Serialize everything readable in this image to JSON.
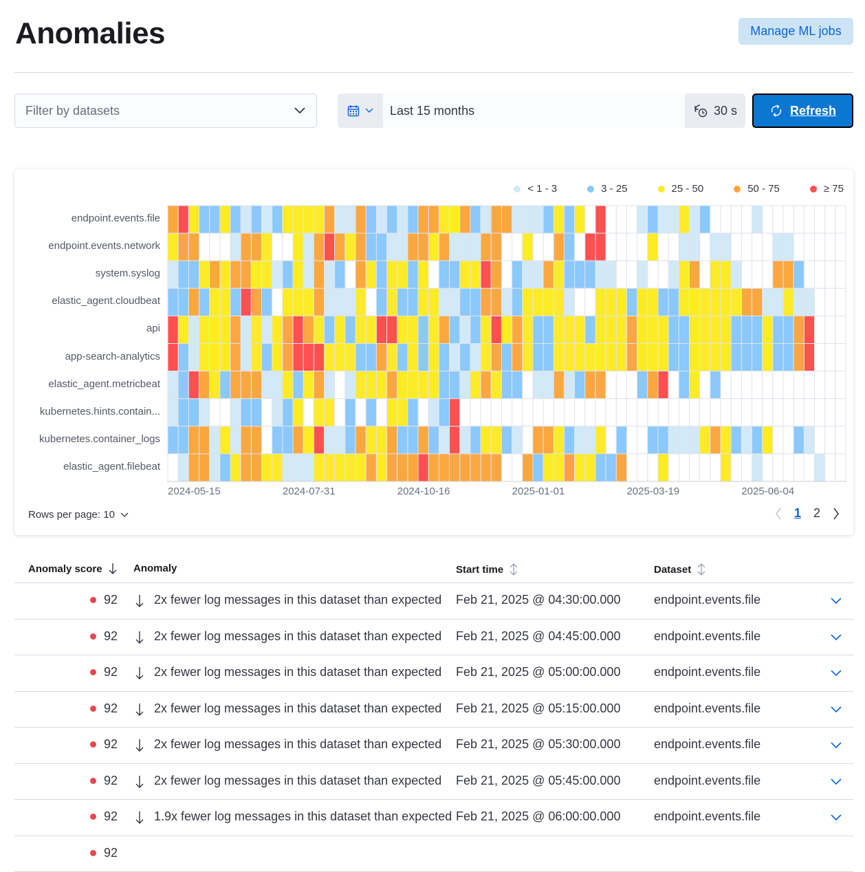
{
  "page_title": "Anomalies",
  "manage_ml_jobs": "Manage ML jobs",
  "filter": {
    "placeholder": "Filter by datasets"
  },
  "date_picker": {
    "value": "Last 15 months",
    "interval": "30 s",
    "refresh": "Refresh"
  },
  "colors": {
    "accent": "#0b77d2",
    "buckets": [
      "#ffffff",
      "#d2e9f7",
      "#8bc8fb",
      "#fdec25",
      "#fba740",
      "#fe5050"
    ]
  },
  "chart_data": {
    "type": "heatmap",
    "x_ticks": [
      "2024-05-15",
      "2024-07-31",
      "2024-10-16",
      "2025-01-01",
      "2025-03-19",
      "2025-06-04"
    ],
    "x_start": "2024-05-15",
    "x_interval": "1 week",
    "legend": [
      {
        "label": "< 1 - 3",
        "bucket": 1
      },
      {
        "label": "3 - 25",
        "bucket": 2
      },
      {
        "label": "25 - 50",
        "bucket": 3
      },
      {
        "label": "50 - 75",
        "bucket": 4
      },
      {
        "label": "≥ 75",
        "bucket": 5
      }
    ],
    "rows": [
      {
        "label": "endpoint.events.file",
        "buckets": "45322321212333341142121244334214411123230500012113120000100000000000"
      },
      {
        "label": "endpoint.events.network",
        "buckets": "34400014430031454342211443411144003004205500003001101100001100000"
      },
      {
        "label": "system.syslog",
        "buckets": "12234344331231412043233230223354021143222110010013403310004420000"
      },
      {
        "label": "elastic_agent.cloudbeat",
        "buckets": "22423325420333411130232233112244123333100333233223333334411311000"
      },
      {
        "label": "api",
        "buckets": "53133341313454323233553323421235343223332333433322333322232245000"
      },
      {
        "label": "app-search-analytics",
        "buckets": "52133341323455533322432323212134243223333333433322333322232245000"
      },
      {
        "label": "elastic_agent.metricbeat",
        "buckets": "12543244411323410133343333221343220114124400024502302000000000000"
      },
      {
        "label": "kubernetes.hints.contain...",
        "buckets": "12210012201230330202033201250000000000000000000000000000000000000"
      },
      {
        "label": "kubernetes.container_logs",
        "buckets": "22441314402243511243342242151233210443211302002211134321230021000"
      },
      {
        "label": "elastic_agent.filebeat",
        "buckets": "01441234433111333334344454444444004233433224000300000300100000100"
      }
    ]
  },
  "rows_per_page": "Rows per page: 10",
  "pagination": {
    "pages": [
      "1",
      "2"
    ],
    "current": "1"
  },
  "table": {
    "headers": {
      "score": "Anomaly score",
      "anomaly": "Anomaly",
      "start": "Start time",
      "dataset": "Dataset"
    },
    "rows": [
      {
        "score": "92",
        "anomaly": "2x fewer log messages in this dataset than expected",
        "start": "Feb 21, 2025 @ 04:30:00.000",
        "dataset": "endpoint.events.file"
      },
      {
        "score": "92",
        "anomaly": "2x fewer log messages in this dataset than expected",
        "start": "Feb 21, 2025 @ 04:45:00.000",
        "dataset": "endpoint.events.file"
      },
      {
        "score": "92",
        "anomaly": "2x fewer log messages in this dataset than expected",
        "start": "Feb 21, 2025 @ 05:00:00.000",
        "dataset": "endpoint.events.file"
      },
      {
        "score": "92",
        "anomaly": "2x fewer log messages in this dataset than expected",
        "start": "Feb 21, 2025 @ 05:15:00.000",
        "dataset": "endpoint.events.file"
      },
      {
        "score": "92",
        "anomaly": "2x fewer log messages in this dataset than expected",
        "start": "Feb 21, 2025 @ 05:30:00.000",
        "dataset": "endpoint.events.file"
      },
      {
        "score": "92",
        "anomaly": "2x fewer log messages in this dataset than expected",
        "start": "Feb 21, 2025 @ 05:45:00.000",
        "dataset": "endpoint.events.file"
      },
      {
        "score": "92",
        "anomaly": "1.9x fewer log messages in this dataset than expected",
        "start": "Feb 21, 2025 @ 06:00:00.000",
        "dataset": "endpoint.events.file"
      },
      {
        "score": "92",
        "anomaly": "",
        "start": "",
        "dataset": ""
      }
    ]
  }
}
